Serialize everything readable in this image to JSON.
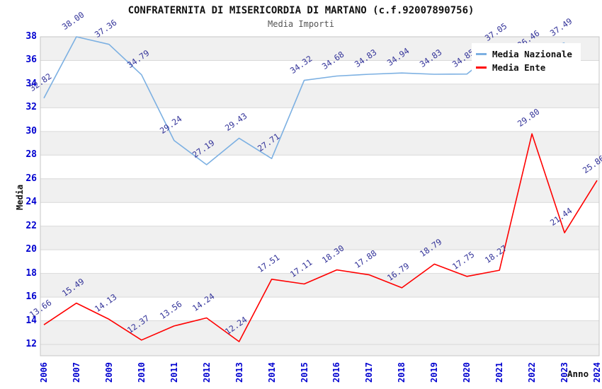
{
  "title": "CONFRATERNITA DI MISERICORDIA DI MARTANO (c.f.92007890756)",
  "subtitle": "Media Importi",
  "colors": {
    "national_line": "#7cb0e2",
    "entity_line": "#ff0000",
    "axis_tick_text": "#0000d0",
    "data_label_text": "#333399",
    "band_fill": "#f0f0f0",
    "gridline": "#d9d9d9",
    "plot_border": "#c6c6c6",
    "background": "#ffffff"
  },
  "legend": {
    "position": "top-right",
    "items": [
      {
        "label": "Media Nazionale",
        "color": "#7cb0e2"
      },
      {
        "label": "Media Ente",
        "color": "#ff0000"
      }
    ]
  },
  "chart_data": {
    "type": "line",
    "title": "CONFRATERNITA DI MISERICORDIA DI MARTANO (c.f.92007890756)",
    "subtitle": "Media Importi",
    "xlabel": "Anno",
    "ylabel": "Media",
    "ylim": [
      12,
      38
    ],
    "ytick_step": 2,
    "grid": true,
    "band_stripes": true,
    "legend_position": "top-right",
    "x": [
      2006,
      2007,
      2009,
      2010,
      2011,
      2012,
      2013,
      2014,
      2015,
      2016,
      2017,
      2018,
      2019,
      2020,
      2021,
      2022,
      2023,
      2024
    ],
    "series": [
      {
        "name": "Media Nazionale",
        "color": "#7cb0e2",
        "values": [
          32.82,
          38.0,
          37.36,
          34.79,
          29.24,
          27.19,
          29.43,
          27.71,
          34.32,
          34.68,
          34.83,
          34.94,
          34.83,
          34.85,
          37.05,
          36.46,
          37.49,
          null
        ]
      },
      {
        "name": "Media Ente",
        "color": "#ff0000",
        "values": [
          13.66,
          15.49,
          14.13,
          12.37,
          13.56,
          14.24,
          12.24,
          17.51,
          17.11,
          18.3,
          17.88,
          16.79,
          18.79,
          17.75,
          18.27,
          29.8,
          21.44,
          25.86
        ]
      }
    ]
  }
}
